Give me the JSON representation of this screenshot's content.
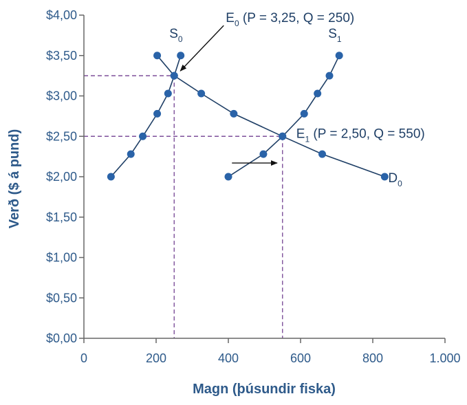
{
  "chart_data": {
    "type": "line",
    "xlabel": "Magn (þúsundir fiska)",
    "ylabel": "Verð ($ á pund)",
    "xlim": [
      0,
      1000
    ],
    "ylim": [
      0,
      4
    ],
    "x_ticks": [
      0,
      200,
      400,
      600,
      800,
      1000
    ],
    "x_tick_labels": [
      "0",
      "200",
      "400",
      "600",
      "800",
      "1.000"
    ],
    "y_ticks": [
      0,
      0.5,
      1,
      1.5,
      2,
      2.5,
      3,
      3.5,
      4
    ],
    "y_tick_labels": [
      "$0,00",
      "$0,50",
      "$1,00",
      "$1,50",
      "$2,00",
      "$2,50",
      "$3,00",
      "$3,50",
      "$4,00"
    ],
    "grid": false,
    "series": [
      {
        "name": "S0",
        "points": [
          [
            75,
            2.0
          ],
          [
            130,
            2.28
          ],
          [
            163,
            2.5
          ],
          [
            203,
            2.78
          ],
          [
            233,
            3.03
          ],
          [
            250,
            3.25
          ],
          [
            268,
            3.5
          ]
        ]
      },
      {
        "name": "S1",
        "points": [
          [
            400,
            2.0
          ],
          [
            497,
            2.28
          ],
          [
            550,
            2.5
          ],
          [
            610,
            2.78
          ],
          [
            647,
            3.03
          ],
          [
            680,
            3.25
          ],
          [
            707,
            3.5
          ]
        ]
      },
      {
        "name": "D0",
        "points": [
          [
            203,
            3.5
          ],
          [
            250,
            3.25
          ],
          [
            325,
            3.03
          ],
          [
            415,
            2.78
          ],
          [
            550,
            2.5
          ],
          [
            660,
            2.28
          ],
          [
            833,
            2.0
          ]
        ]
      }
    ],
    "curve_labels": [
      {
        "main": "S",
        "sub": "0",
        "x": 255,
        "y": 3.72
      },
      {
        "main": "S",
        "sub": "1",
        "x": 695,
        "y": 3.72
      },
      {
        "main": "D",
        "sub": "0",
        "x": 862,
        "y": 1.93
      }
    ],
    "equilibria": [
      {
        "main": "E",
        "sub": "0",
        "rest": " (P = 3,25, Q = 250)",
        "x": 250,
        "y": 3.25
      },
      {
        "main": "E",
        "sub": "1",
        "rest": " (P = 2,50, Q = 550)",
        "x": 550,
        "y": 2.5
      }
    ],
    "shift_arrow": {
      "from": [
        410,
        2.17
      ],
      "to": [
        535,
        2.17
      ]
    },
    "colors": {
      "text": "#2e5a8a",
      "curve": "#1f3f66",
      "point": "#2a63a8",
      "guide": "#7d4f9a",
      "axis": "#666666"
    }
  }
}
